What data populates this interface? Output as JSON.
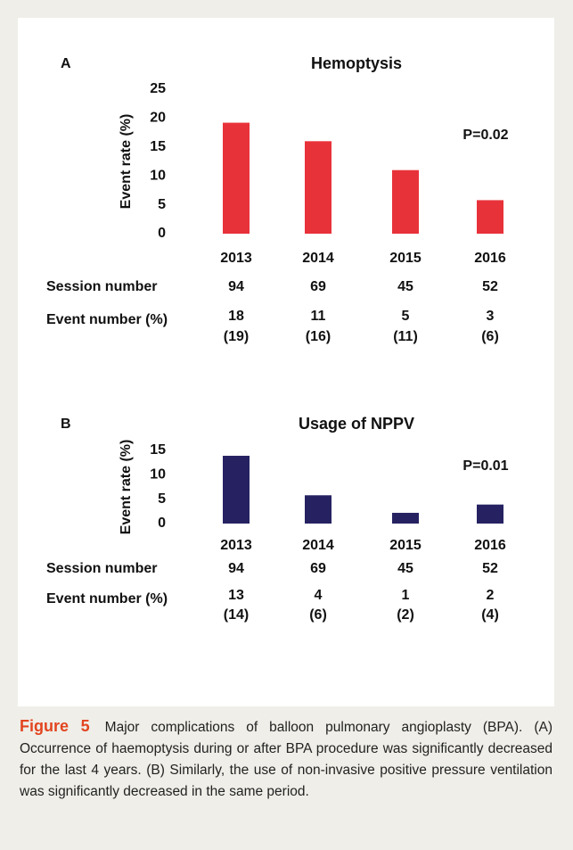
{
  "chart_data": [
    {
      "type": "bar",
      "panel": "A",
      "title": "Hemoptysis",
      "y_label": "Event rate (%)",
      "annotation": "P=0.02",
      "categories": [
        "2013",
        "2014",
        "2015",
        "2016"
      ],
      "values": [
        19.2,
        16,
        11,
        5.8
      ],
      "color": "#e8323a",
      "ylim": [
        0,
        25
      ],
      "yticks": [
        0,
        5,
        10,
        15,
        20,
        25
      ],
      "session_number": {
        "label": "Session number",
        "values": [
          94,
          69,
          45,
          52
        ]
      },
      "event_number": {
        "label": "Event number (%)",
        "counts": [
          18,
          11,
          5,
          3
        ],
        "percents": [
          "(19)",
          "(16)",
          "(11)",
          "(6)"
        ]
      }
    },
    {
      "type": "bar",
      "panel": "B",
      "title": "Usage of NPPV",
      "y_label": "Event rate (%)",
      "annotation": "P=0.01",
      "categories": [
        "2013",
        "2014",
        "2015",
        "2016"
      ],
      "values": [
        13.9,
        5.8,
        2.2,
        3.9
      ],
      "color": "#262262",
      "ylim": [
        0,
        15
      ],
      "yticks": [
        0,
        5,
        10,
        15
      ],
      "session_number": {
        "label": "Session number",
        "values": [
          94,
          69,
          45,
          52
        ]
      },
      "event_number": {
        "label": "Event number (%)",
        "counts": [
          13,
          4,
          1,
          2
        ],
        "percents": [
          "(14)",
          "(6)",
          "(2)",
          "(4)"
        ]
      }
    }
  ],
  "figure_label": "Figure 5",
  "caption": "Major complications of balloon pulmonary angioplasty (BPA). (A) Occurrence of haemoptysis during or after BPA procedure was significantly decreased for the last 4 years. (B) Similarly, the use of non-invasive positive pressure ventilation was significantly decreased in the same period."
}
